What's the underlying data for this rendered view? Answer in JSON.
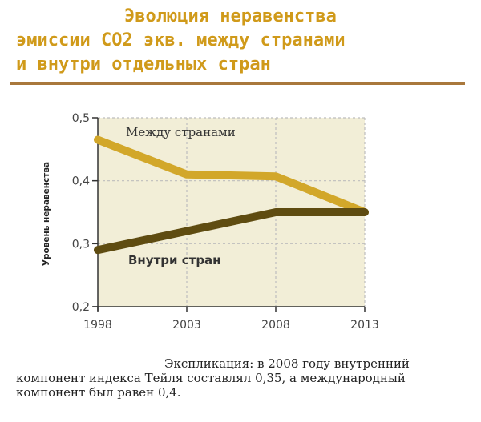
{
  "title_lines": [
    "Эволюция неравенства",
    "эмиссии CO2 экв. между странами",
    "и внутри отдельных стран"
  ],
  "colors": {
    "title": "#d09a1a",
    "rule": "#a9783c",
    "plot_bg": "#f2eed7",
    "grid": "#bdbdbd",
    "between": "#d2a72a",
    "within": "#5f4c11"
  },
  "chart_data": {
    "type": "line",
    "title": "Эволюция неравенства эмиссии CO2 экв. между странами и внутри отдельных стран",
    "x": [
      1998,
      2003,
      2008,
      2013
    ],
    "ylabel": "Уровень неравенства",
    "ylim": [
      0.2,
      0.5
    ],
    "yticks": [
      "0,5",
      "0,4",
      "0,3",
      "0,2"
    ],
    "xticks": [
      "1998",
      "2003",
      "2008",
      "2013"
    ],
    "grid": true,
    "series": [
      {
        "name": "Между странами",
        "values": [
          0.465,
          0.41,
          0.407,
          0.35
        ]
      },
      {
        "name": "Внутри стран",
        "values": [
          0.29,
          0.32,
          0.35,
          0.35
        ]
      }
    ]
  },
  "note_lines": [
    "Экспликация: в 2008 году внутренний",
    "компонент  индекса Тейля составлял 0,35, а международный",
    "компонент был равен 0,4."
  ]
}
